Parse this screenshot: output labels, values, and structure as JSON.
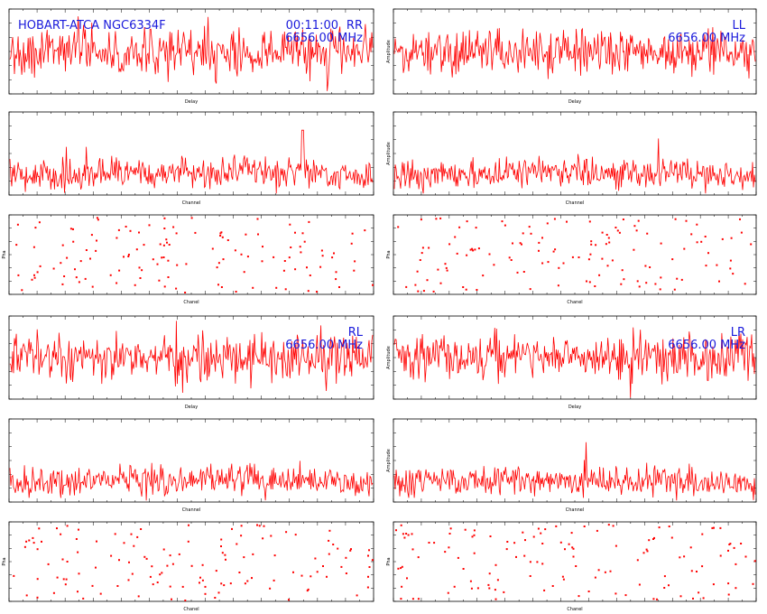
{
  "header": {
    "source_label": "HOBART-ATCA NGC6334F",
    "time_label": "00:11:00"
  },
  "colors": {
    "trace": "#ff0000",
    "annotation": "#1a1adb",
    "frame": "#000000"
  },
  "chart_data": [
    {
      "group": "RR",
      "type": "line",
      "xlabel": "Delay",
      "ylabel": "",
      "freq": "6656.00 MHz",
      "pol": "RR"
    },
    {
      "group": "RR",
      "type": "line",
      "xlabel": "Channel",
      "ylabel": ""
    },
    {
      "group": "RR",
      "type": "scatter",
      "xlabel": "Chanel",
      "ylabel": "Pha"
    },
    {
      "group": "LL",
      "type": "line",
      "xlabel": "Delay",
      "ylabel": "Amplitude",
      "freq": "6656.00 MHz",
      "pol": "LL"
    },
    {
      "group": "LL",
      "type": "line",
      "xlabel": "Channel",
      "ylabel": "Amplitude"
    },
    {
      "group": "LL",
      "type": "scatter",
      "xlabel": "Chanel",
      "ylabel": "Pha"
    },
    {
      "group": "RL",
      "type": "line",
      "xlabel": "Delay",
      "ylabel": "",
      "freq": "6656.00 MHz",
      "pol": "RL"
    },
    {
      "group": "RL",
      "type": "line",
      "xlabel": "Channel",
      "ylabel": ""
    },
    {
      "group": "RL",
      "type": "scatter",
      "xlabel": "Chanel",
      "ylabel": "Pha"
    },
    {
      "group": "LR",
      "type": "line",
      "xlabel": "Delay",
      "ylabel": "Amplitude",
      "freq": "6656.00 MHz",
      "pol": "LR"
    },
    {
      "group": "LR",
      "type": "line",
      "xlabel": "Channel",
      "ylabel": "Amplitude"
    },
    {
      "group": "LR",
      "type": "scatter",
      "xlabel": "Chanel",
      "ylabel": "Pha"
    }
  ]
}
